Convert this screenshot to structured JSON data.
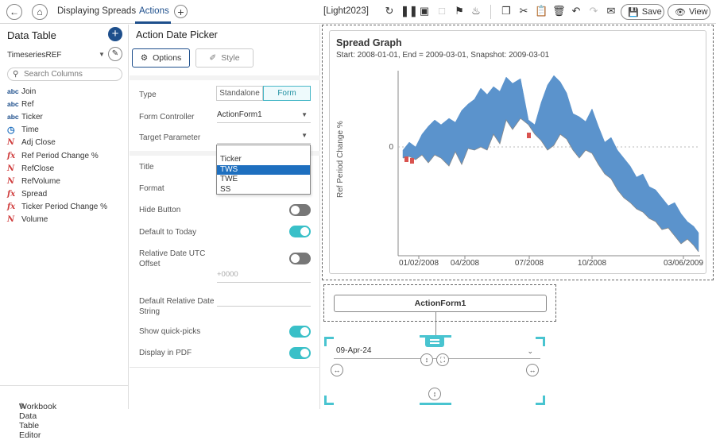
{
  "topbar": {
    "workbook_title": "Displaying Spreads",
    "active_tab": "Actions",
    "theme": "[Light2023]",
    "save_label": "Save",
    "view_label": "View"
  },
  "left": {
    "title": "Data Table",
    "datasource": "TimeseriesREF",
    "search_placeholder": "Search Columns",
    "columns": [
      {
        "type": "abc",
        "name": "Join"
      },
      {
        "type": "abc",
        "name": "Ref"
      },
      {
        "type": "abc",
        "name": "Ticker"
      },
      {
        "type": "time",
        "name": "Time"
      },
      {
        "type": "num",
        "name": "Adj Close"
      },
      {
        "type": "fx",
        "name": "Ref Period Change %"
      },
      {
        "type": "num",
        "name": "RefClose"
      },
      {
        "type": "num",
        "name": "RefVolume"
      },
      {
        "type": "fx",
        "name": "Spread"
      },
      {
        "type": "fx",
        "name": "Ticker Period Change %"
      },
      {
        "type": "num",
        "name": "Volume"
      }
    ],
    "footer": "Workbook Data Table Editor"
  },
  "settings": {
    "title": "Action Date Picker",
    "options_tab": "Options",
    "style_tab": "Style",
    "type_label": "Type",
    "type_options": [
      "Standalone",
      "Form"
    ],
    "form_controller_label": "Form Controller",
    "form_controller_value": "ActionForm1",
    "target_parameter_label": "Target Parameter",
    "dropdown_options": [
      "Ticker",
      "TWS",
      "TWE",
      "SS"
    ],
    "dropdown_selected": "TWS",
    "title_label": "Title",
    "format_label": "Format",
    "hide_button_label": "Hide Button",
    "hide_button_on": false,
    "default_today_label": "Default to Today",
    "default_today_on": true,
    "relative_utc_label": "Relative Date UTC Offset",
    "relative_utc_on": false,
    "relative_utc_placeholder": "+0000",
    "default_relative_label": "Default Relative Date String",
    "quick_picks_label": "Show quick-picks",
    "quick_picks_on": true,
    "display_pdf_label": "Display in PDF",
    "display_pdf_on": true
  },
  "canvas": {
    "graph_title": "Spread Graph",
    "graph_subtitle": "Start: 2008-01-01, End = 2009-03-01, Snapshot: 2009-03-01",
    "form_button": "ActionForm1",
    "date_value": "09-Apr-24"
  },
  "chart_data": {
    "type": "area",
    "ylabel": "Ref Period Change %",
    "y_tick": "0",
    "x_ticks": [
      "01/02/2008",
      "04/2008",
      "07/2008",
      "10/2008",
      "03/06/2009"
    ],
    "colors": {
      "spread_positive": "#5b93cc",
      "spread_negative": "#d9534f"
    }
  }
}
